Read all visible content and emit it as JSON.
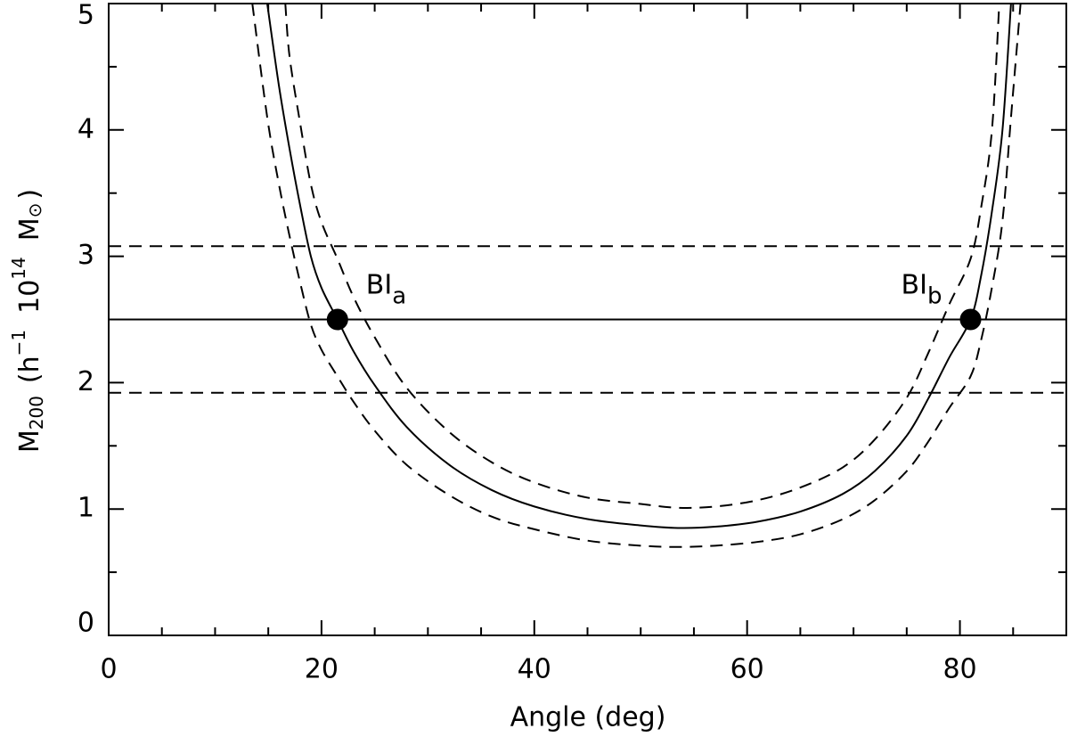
{
  "chart_data": {
    "type": "line",
    "x_label": "Angle (deg)",
    "y_label_parts": [
      "M",
      "200",
      "(h",
      "−1",
      "10",
      "14",
      "M",
      "⊙",
      ")"
    ],
    "xlim": [
      0,
      90
    ],
    "ylim": [
      0,
      5
    ],
    "xticks": [
      0,
      20,
      40,
      60,
      80
    ],
    "yticks": [
      0,
      1,
      2,
      3,
      4,
      5
    ],
    "x_minor_ticks": [
      5,
      10,
      15,
      25,
      30,
      35,
      45,
      50,
      55,
      65,
      70,
      75,
      85
    ],
    "y_minor_ticks": [
      0.5,
      1.5,
      2.5,
      3.5,
      4.5
    ],
    "color": "#000000",
    "series": [
      {
        "style": "solid",
        "x": [
          14.9,
          16,
          17,
          18,
          19,
          20,
          21.5,
          23,
          25,
          28,
          32,
          36,
          40,
          45,
          50,
          53.5,
          57,
          61,
          65,
          69,
          72,
          75,
          77,
          79,
          81,
          82,
          83,
          84,
          84.8
        ],
        "y": [
          5.0,
          4.35,
          3.85,
          3.4,
          3.0,
          2.75,
          2.5,
          2.25,
          1.98,
          1.65,
          1.35,
          1.15,
          1.02,
          0.92,
          0.87,
          0.85,
          0.86,
          0.9,
          0.98,
          1.12,
          1.3,
          1.58,
          1.87,
          2.2,
          2.5,
          2.85,
          3.35,
          4.0,
          5.0
        ]
      },
      {
        "style": "dashed",
        "x": [
          16.6,
          17,
          18,
          19,
          20,
          21.5,
          23,
          25,
          28,
          32,
          36,
          40,
          45,
          50,
          53.5,
          57,
          61,
          65,
          69,
          72,
          75,
          77,
          79,
          81,
          82,
          83,
          83.7
        ],
        "y": [
          5.0,
          4.58,
          4.05,
          3.57,
          3.27,
          2.98,
          2.68,
          2.36,
          1.96,
          1.61,
          1.37,
          1.21,
          1.09,
          1.04,
          1.01,
          1.02,
          1.07,
          1.17,
          1.33,
          1.55,
          1.88,
          2.23,
          2.62,
          2.98,
          3.39,
          3.99,
          5.0
        ]
      },
      {
        "style": "dashed",
        "x": [
          13.5,
          14.9,
          16,
          17,
          18,
          19,
          20,
          21.5,
          23,
          25,
          28,
          32,
          36,
          40,
          45,
          50,
          53.5,
          57,
          61,
          65,
          69,
          72,
          75,
          77,
          79,
          81,
          82,
          83,
          84,
          84.8,
          85.7
        ],
        "y": [
          5.0,
          4.1,
          3.57,
          3.16,
          2.79,
          2.46,
          2.26,
          2.05,
          1.85,
          1.62,
          1.35,
          1.11,
          0.94,
          0.84,
          0.75,
          0.71,
          0.7,
          0.71,
          0.74,
          0.8,
          0.92,
          1.07,
          1.3,
          1.53,
          1.8,
          2.05,
          2.34,
          2.75,
          3.28,
          4.1,
          5.0
        ]
      }
    ],
    "hlines": [
      {
        "value": 2.5,
        "style": "solid"
      },
      {
        "value": 3.08,
        "style": "dashed"
      },
      {
        "value": 1.92,
        "style": "dashed"
      }
    ],
    "points": {
      "x": [
        21.5,
        81
      ],
      "y": [
        2.5,
        2.5
      ],
      "labels": [
        [
          "BI",
          "a"
        ],
        [
          "BI",
          "b"
        ]
      ]
    }
  }
}
